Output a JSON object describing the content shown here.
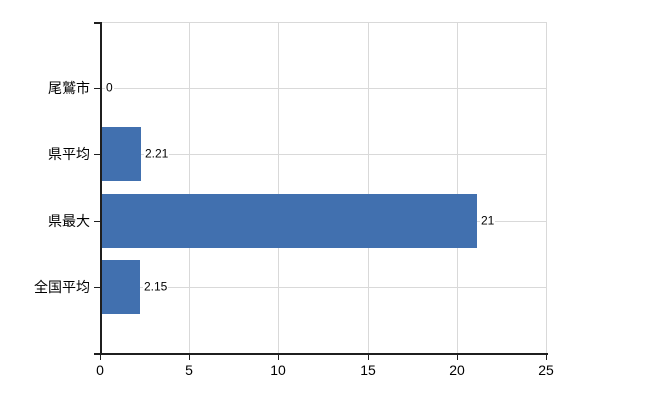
{
  "chart_data": {
    "type": "bar",
    "orientation": "horizontal",
    "title": "",
    "categories": [
      "尾鷲市",
      "県平均",
      "県最大",
      "全国平均"
    ],
    "values": [
      0,
      2.21,
      21,
      2.15
    ],
    "value_labels": [
      "0",
      "2.21",
      "21",
      "2.15"
    ],
    "xlabel": "",
    "ylabel": "",
    "xlim": [
      0,
      25
    ],
    "x_ticks": [
      0,
      5,
      10,
      15,
      20,
      25
    ],
    "x_tick_labels": [
      "0",
      "5",
      "10",
      "15",
      "20",
      "25"
    ],
    "grid": "on",
    "legend": "none",
    "colors": {
      "bar": "#4170AF",
      "gridline": "#D9D9D9",
      "axis": "#1F1F1F",
      "text": "#000000",
      "background": "#FFFFFF"
    }
  }
}
